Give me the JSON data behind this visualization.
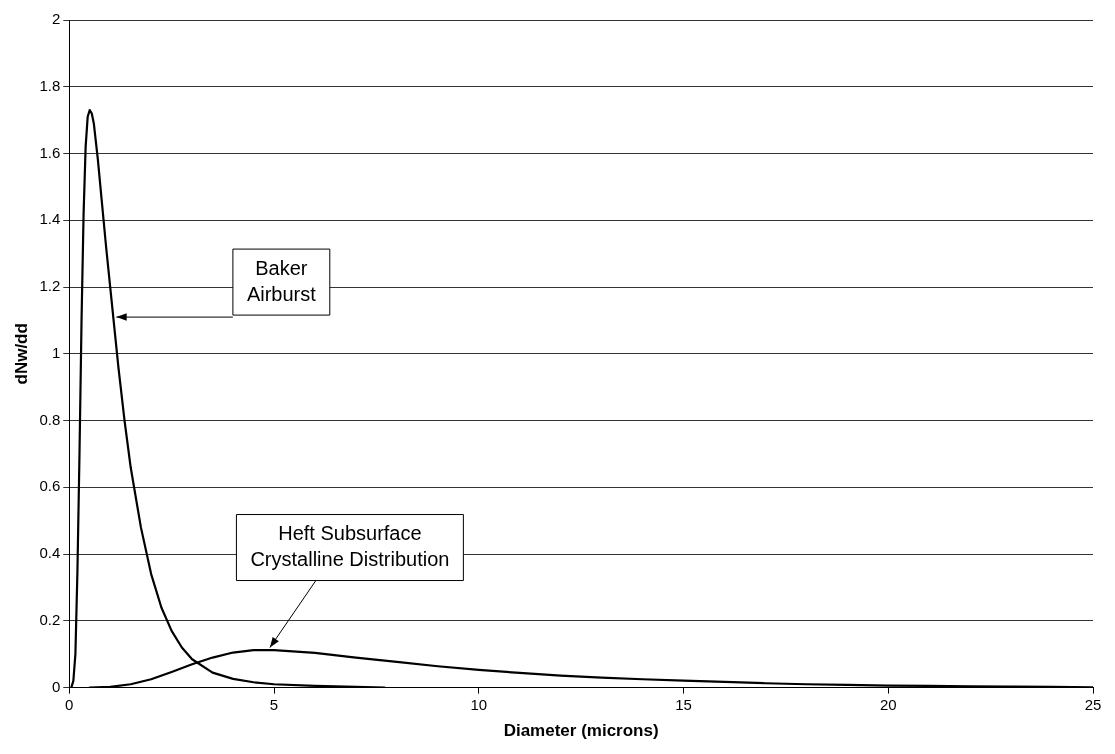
{
  "chart_data": {
    "type": "line",
    "xlabel": "Diameter (microns)",
    "ylabel": "dNw/dd",
    "xlim": [
      0,
      25
    ],
    "xticks": [
      0,
      5,
      10,
      15,
      20,
      25
    ],
    "ylim": [
      0,
      2
    ],
    "yticks": [
      0,
      0.2,
      0.4,
      0.6,
      0.8,
      1,
      1.2,
      1.4,
      1.6,
      1.8,
      2
    ],
    "grid": "y",
    "marker": "none",
    "line_style": "solid",
    "legend": false,
    "series": [
      {
        "color": "#000000",
        "x": [
          0.05,
          0.1,
          0.15,
          0.2,
          0.25,
          0.3,
          0.35,
          0.4,
          0.45,
          0.5,
          0.55,
          0.6,
          0.7,
          0.8,
          0.9,
          1,
          1.1,
          1.2,
          1.35,
          1.5,
          1.75,
          2,
          2.25,
          2.5,
          2.75,
          3,
          3.5,
          4,
          4.5,
          5,
          6,
          7,
          7.7
        ],
        "values": [
          0,
          0.02,
          0.1,
          0.35,
          0.7,
          1.1,
          1.42,
          1.62,
          1.71,
          1.73,
          1.72,
          1.69,
          1.58,
          1.45,
          1.32,
          1.2,
          1.08,
          0.96,
          0.8,
          0.66,
          0.48,
          0.34,
          0.24,
          0.17,
          0.12,
          0.085,
          0.045,
          0.026,
          0.016,
          0.01,
          0.005,
          0.002,
          0
        ]
      },
      {
        "color": "#000000",
        "x": [
          0.5,
          1,
          1.5,
          2,
          2.5,
          3,
          3.5,
          4,
          4.5,
          5,
          6,
          7,
          8,
          9,
          10,
          11,
          12,
          13,
          14,
          15,
          16,
          17,
          18,
          19,
          20,
          21,
          22,
          23,
          24,
          25
        ],
        "values": [
          0,
          0.002,
          0.01,
          0.025,
          0.047,
          0.07,
          0.09,
          0.105,
          0.112,
          0.112,
          0.104,
          0.09,
          0.077,
          0.064,
          0.053,
          0.044,
          0.036,
          0.03,
          0.025,
          0.021,
          0.017,
          0.013,
          0.01,
          0.008,
          0.006,
          0.005,
          0.004,
          0.003,
          0.002,
          0.001
        ]
      }
    ],
    "annotations": [
      {
        "text": "Baker Airburst",
        "x": 1.15,
        "y": 1.11
      },
      {
        "text": "Heft Subsurface Crystalline Distribution",
        "x": 4.9,
        "y": 0.12
      }
    ]
  }
}
